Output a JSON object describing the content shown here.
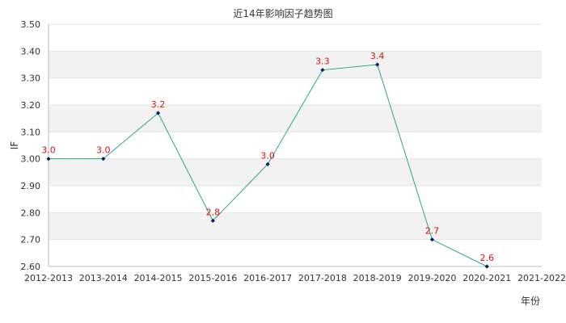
{
  "chart_data": {
    "type": "line",
    "title": "近14年影响因子趋势图",
    "xlabel": "年份",
    "ylabel": "IF",
    "categories": [
      "2012-2013",
      "2013-2014",
      "2014-2015",
      "2015-2016",
      "2016-2017",
      "2017-2018",
      "2018-2019",
      "2019-2020",
      "2020-2021",
      "2021-2022"
    ],
    "series": [
      {
        "values": [
          3.0,
          3.0,
          3.17,
          2.77,
          2.98,
          3.33,
          3.35,
          2.7,
          2.6,
          null
        ],
        "labels": [
          "3.0",
          "3.0",
          "3.2",
          "2.8",
          "3.0",
          "3.3",
          "3.4",
          "2.7",
          "2.6",
          ""
        ]
      }
    ],
    "ylim": [
      2.6,
      3.5
    ],
    "yticks": [
      2.6,
      2.7,
      2.8,
      2.9,
      3.0,
      3.1,
      3.2,
      3.3,
      3.4,
      3.5
    ],
    "ytick_labels": [
      "2.60",
      "2.70",
      "2.80",
      "2.90",
      "3.00",
      "3.10",
      "3.20",
      "3.30",
      "3.40",
      "3.50"
    ],
    "grid": true,
    "colors": {
      "line": "#2aa68a",
      "marker": "#0a1a6e",
      "data_label": "#e01010",
      "band": "#f2f2f2"
    }
  }
}
